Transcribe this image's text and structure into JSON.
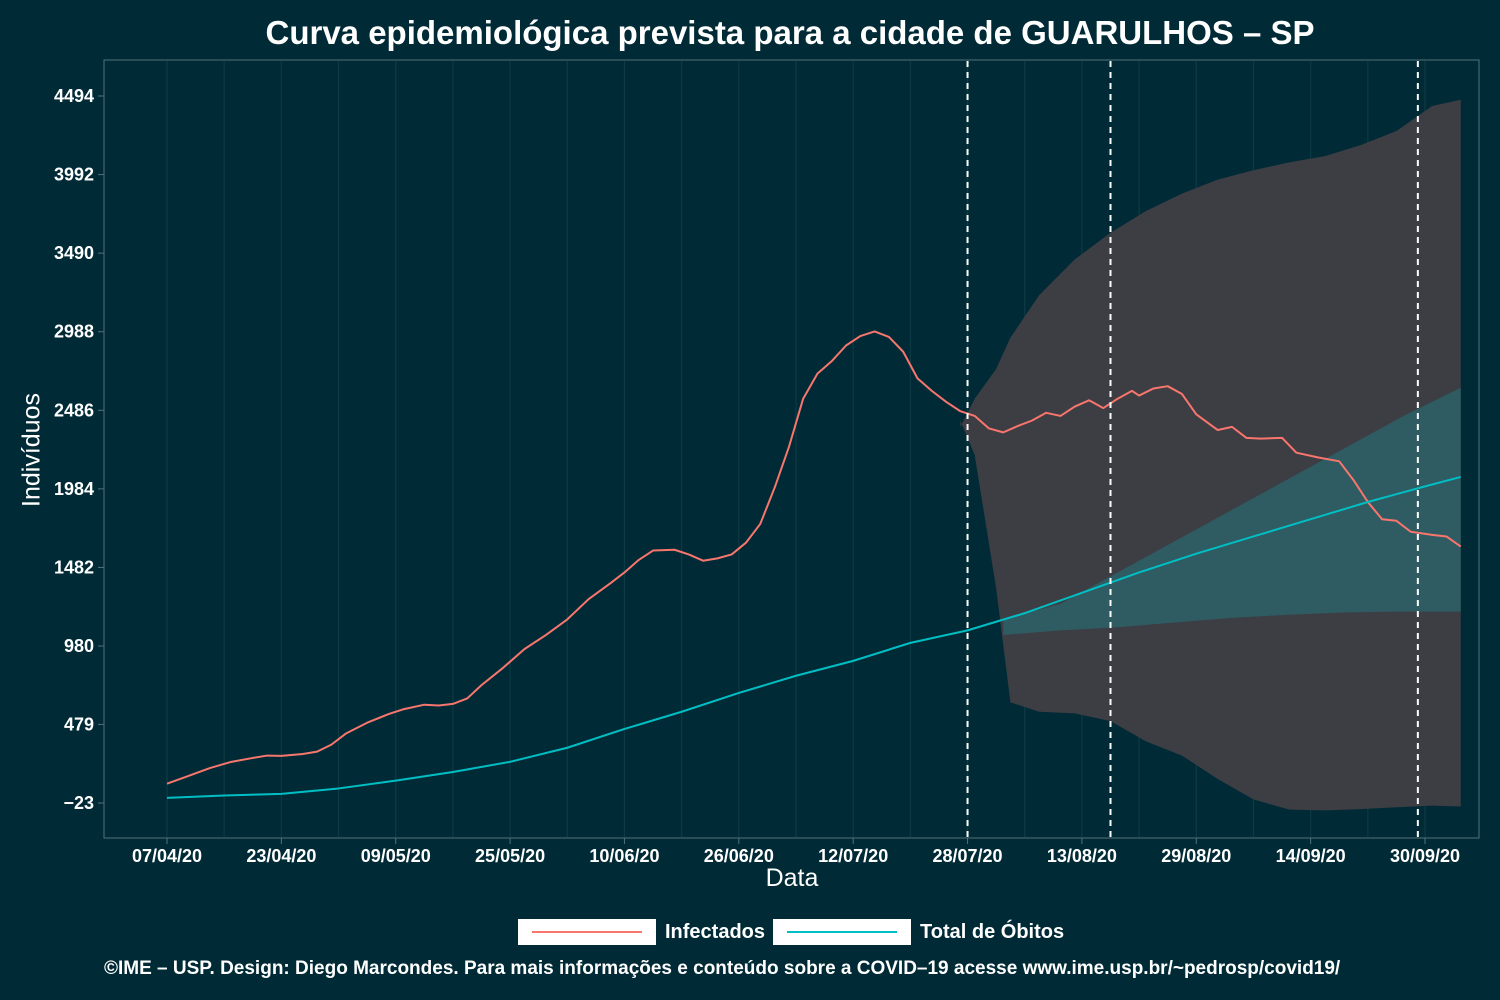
{
  "chart_data": {
    "type": "line",
    "title": "Curva epidemiológica prevista para a cidade de GUARULHOS – SP",
    "xlabel": "Data",
    "ylabel": "Indivíduos",
    "x_start": "2020-04-07",
    "x_end": "2020-09-30",
    "ylim": [
      -230,
      4700
    ],
    "yticks": [
      -23,
      479,
      980,
      1482,
      1984,
      2486,
      2988,
      3490,
      3992,
      4494
    ],
    "ytick_labels": [
      "−23",
      "479",
      "980",
      "1482",
      "1984",
      "2486",
      "2988",
      "3490",
      "3992",
      "4494"
    ],
    "xticks": [
      "2020-04-07",
      "2020-04-23",
      "2020-05-09",
      "2020-05-25",
      "2020-06-10",
      "2020-06-26",
      "2020-07-12",
      "2020-07-28",
      "2020-08-13",
      "2020-08-29",
      "2020-09-14",
      "2020-09-30"
    ],
    "xtick_labels": [
      "07/04/20",
      "23/04/20",
      "09/05/20",
      "25/05/20",
      "10/06/20",
      "26/06/20",
      "12/07/20",
      "28/07/20",
      "13/08/20",
      "29/08/20",
      "14/09/20",
      "30/09/20"
    ],
    "vlines": [
      "2020-07-28",
      "2020-08-17",
      "2020-09-29"
    ],
    "grid": true,
    "legend_position": "bottom",
    "series": [
      {
        "name": "Infectados",
        "color": "#f8766d",
        "points": [
          [
            "2020-04-07",
            100
          ],
          [
            "2020-04-10",
            150
          ],
          [
            "2020-04-13",
            200
          ],
          [
            "2020-04-16",
            240
          ],
          [
            "2020-04-19",
            265
          ],
          [
            "2020-04-21",
            280
          ],
          [
            "2020-04-23",
            278
          ],
          [
            "2020-04-26",
            290
          ],
          [
            "2020-04-28",
            305
          ],
          [
            "2020-04-30",
            350
          ],
          [
            "2020-05-02",
            420
          ],
          [
            "2020-05-05",
            490
          ],
          [
            "2020-05-08",
            545
          ],
          [
            "2020-05-10",
            575
          ],
          [
            "2020-05-13",
            605
          ],
          [
            "2020-05-15",
            600
          ],
          [
            "2020-05-17",
            610
          ],
          [
            "2020-05-19",
            645
          ],
          [
            "2020-05-21",
            730
          ],
          [
            "2020-05-24",
            840
          ],
          [
            "2020-05-27",
            960
          ],
          [
            "2020-05-30",
            1050
          ],
          [
            "2020-06-02",
            1150
          ],
          [
            "2020-06-05",
            1280
          ],
          [
            "2020-06-08",
            1380
          ],
          [
            "2020-06-10",
            1450
          ],
          [
            "2020-06-12",
            1530
          ],
          [
            "2020-06-14",
            1590
          ],
          [
            "2020-06-17",
            1595
          ],
          [
            "2020-06-19",
            1565
          ],
          [
            "2020-06-21",
            1525
          ],
          [
            "2020-06-23",
            1540
          ],
          [
            "2020-06-25",
            1565
          ],
          [
            "2020-06-27",
            1640
          ],
          [
            "2020-06-29",
            1760
          ],
          [
            "2020-07-01",
            1990
          ],
          [
            "2020-07-03",
            2250
          ],
          [
            "2020-07-05",
            2560
          ],
          [
            "2020-07-07",
            2720
          ],
          [
            "2020-07-09",
            2800
          ],
          [
            "2020-07-11",
            2900
          ],
          [
            "2020-07-13",
            2960
          ],
          [
            "2020-07-15",
            2990
          ],
          [
            "2020-07-17",
            2955
          ],
          [
            "2020-07-19",
            2860
          ],
          [
            "2020-07-21",
            2690
          ],
          [
            "2020-07-23",
            2610
          ],
          [
            "2020-07-25",
            2540
          ],
          [
            "2020-07-27",
            2480
          ],
          [
            "2020-07-29",
            2450
          ],
          [
            "2020-07-31",
            2370
          ],
          [
            "2020-08-02",
            2345
          ],
          [
            "2020-08-04",
            2385
          ],
          [
            "2020-08-06",
            2420
          ],
          [
            "2020-08-08",
            2470
          ],
          [
            "2020-08-10",
            2450
          ],
          [
            "2020-08-12",
            2510
          ],
          [
            "2020-08-14",
            2550
          ],
          [
            "2020-08-16",
            2500
          ],
          [
            "2020-08-18",
            2560
          ],
          [
            "2020-08-20",
            2610
          ],
          [
            "2020-08-21",
            2580
          ],
          [
            "2020-08-23",
            2625
          ],
          [
            "2020-08-25",
            2640
          ],
          [
            "2020-08-27",
            2590
          ],
          [
            "2020-08-29",
            2460
          ],
          [
            "2020-09-01",
            2360
          ],
          [
            "2020-09-03",
            2380
          ],
          [
            "2020-09-05",
            2310
          ],
          [
            "2020-09-07",
            2305
          ],
          [
            "2020-09-10",
            2310
          ],
          [
            "2020-09-12",
            2215
          ],
          [
            "2020-09-15",
            2185
          ],
          [
            "2020-09-18",
            2160
          ],
          [
            "2020-09-20",
            2040
          ],
          [
            "2020-09-22",
            1900
          ],
          [
            "2020-09-24",
            1790
          ],
          [
            "2020-09-26",
            1780
          ],
          [
            "2020-09-28",
            1710
          ],
          [
            "2020-10-01",
            1690
          ],
          [
            "2020-10-03",
            1680
          ],
          [
            "2020-10-05",
            1615
          ]
        ]
      },
      {
        "name": "Total de Óbitos",
        "color": "#00bfc4",
        "points": [
          [
            "2020-04-07",
            10
          ],
          [
            "2020-04-15",
            25
          ],
          [
            "2020-04-23",
            35
          ],
          [
            "2020-05-01",
            70
          ],
          [
            "2020-05-09",
            120
          ],
          [
            "2020-05-17",
            175
          ],
          [
            "2020-05-25",
            240
          ],
          [
            "2020-06-02",
            330
          ],
          [
            "2020-06-10",
            450
          ],
          [
            "2020-06-18",
            560
          ],
          [
            "2020-06-26",
            680
          ],
          [
            "2020-07-04",
            790
          ],
          [
            "2020-07-12",
            885
          ],
          [
            "2020-07-20",
            1000
          ],
          [
            "2020-07-28",
            1080
          ],
          [
            "2020-08-05",
            1190
          ],
          [
            "2020-08-13",
            1320
          ],
          [
            "2020-08-21",
            1450
          ],
          [
            "2020-08-29",
            1570
          ],
          [
            "2020-09-06",
            1680
          ],
          [
            "2020-09-14",
            1790
          ],
          [
            "2020-09-22",
            1900
          ],
          [
            "2020-09-30",
            2000
          ],
          [
            "2020-10-05",
            2060
          ]
        ]
      }
    ],
    "bands": [
      {
        "color": "#3d3d44",
        "points": [
          [
            "2020-07-27",
            2420,
            2380
          ],
          [
            "2020-07-29",
            2200,
            2560
          ],
          [
            "2020-08-01",
            1350,
            2750
          ],
          [
            "2020-08-03",
            620,
            2950
          ],
          [
            "2020-08-07",
            560,
            3220
          ],
          [
            "2020-08-12",
            550,
            3450
          ],
          [
            "2020-08-17",
            500,
            3620
          ],
          [
            "2020-08-22",
            370,
            3760
          ],
          [
            "2020-08-27",
            280,
            3870
          ],
          [
            "2020-09-01",
            130,
            3960
          ],
          [
            "2020-09-06",
            0,
            4020
          ],
          [
            "2020-09-11",
            -65,
            4070
          ],
          [
            "2020-09-16",
            -70,
            4110
          ],
          [
            "2020-09-21",
            -62,
            4180
          ],
          [
            "2020-09-26",
            -50,
            4270
          ],
          [
            "2020-10-01",
            -40,
            4430
          ],
          [
            "2020-10-05",
            -45,
            4470
          ]
        ]
      },
      {
        "color": "#2f5b62",
        "points": [
          [
            "2020-08-02",
            1050,
            1150
          ],
          [
            "2020-08-10",
            1080,
            1250
          ],
          [
            "2020-08-18",
            1100,
            1450
          ],
          [
            "2020-08-26",
            1130,
            1650
          ],
          [
            "2020-09-03",
            1160,
            1850
          ],
          [
            "2020-09-11",
            1180,
            2050
          ],
          [
            "2020-09-19",
            1195,
            2250
          ],
          [
            "2020-09-27",
            1200,
            2450
          ],
          [
            "2020-10-05",
            1200,
            2630
          ]
        ]
      }
    ]
  },
  "legend": {
    "items": [
      {
        "label": "Infectados",
        "color": "#f8766d"
      },
      {
        "label": "Total de Óbitos",
        "color": "#00bfc4"
      }
    ]
  },
  "caption": "©IME – USP. Design: Diego Marcondes. Para mais informações e conteúdo sobre a COVID–19 acesse www.ime.usp.br/~pedrosp/covid19/"
}
